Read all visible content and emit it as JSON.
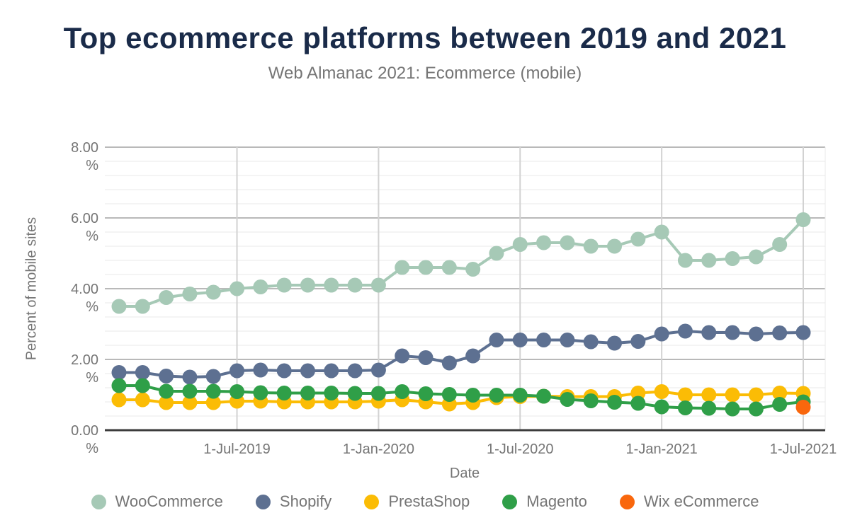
{
  "header": {
    "title": "Top ecommerce platforms between 2019 and 2021",
    "subtitle": "Web Almanac 2021: Ecommerce (mobile)"
  },
  "chart_data": {
    "type": "line",
    "title": "Top ecommerce platforms between 2019 and 2021",
    "subtitle": "Web Almanac 2021: Ecommerce (mobile)",
    "xlabel": "Date",
    "ylabel": "Percent of mobile sites",
    "ylim": [
      0,
      8
    ],
    "y_minor_step": 0.4,
    "y_major_step": 2,
    "grid": true,
    "legend_position": "bottom",
    "y_tick_labels": [
      {
        "value": 8,
        "line1": "8.00",
        "line2": "%"
      },
      {
        "value": 6,
        "line1": "6.00",
        "line2": "%"
      },
      {
        "value": 4,
        "line1": "4.00",
        "line2": "%"
      },
      {
        "value": 2,
        "line1": "2.00",
        "line2": "%"
      },
      {
        "value": 0,
        "line1": "0.00",
        "line2": "%"
      }
    ],
    "x": [
      "1-Feb-2019",
      "1-Mar-2019",
      "1-Apr-2019",
      "1-May-2019",
      "1-Jun-2019",
      "1-Jul-2019",
      "1-Aug-2019",
      "1-Sep-2019",
      "1-Oct-2019",
      "1-Nov-2019",
      "1-Dec-2019",
      "1-Jan-2020",
      "1-Feb-2020",
      "1-Mar-2020",
      "1-Apr-2020",
      "1-May-2020",
      "1-Jun-2020",
      "1-Jul-2020",
      "1-Aug-2020",
      "1-Sep-2020",
      "1-Oct-2020",
      "1-Nov-2020",
      "1-Dec-2020",
      "1-Jan-2021",
      "1-Feb-2021",
      "1-Mar-2021",
      "1-Apr-2021",
      "1-May-2021",
      "1-Jun-2021",
      "1-Jul-2021"
    ],
    "x_tick_indices": [
      5,
      11,
      17,
      23,
      29
    ],
    "x_tick_labels": [
      "1-Jul-2019",
      "1-Jan-2020",
      "1-Jul-2020",
      "1-Jan-2021",
      "1-Jul-2021"
    ],
    "series": [
      {
        "name": "WooCommerce",
        "color": "#a6c9b6",
        "values": [
          3.5,
          3.5,
          3.75,
          3.85,
          3.9,
          4.0,
          4.05,
          4.1,
          4.1,
          4.1,
          4.1,
          4.1,
          4.6,
          4.6,
          4.6,
          4.55,
          5.0,
          5.25,
          5.3,
          5.3,
          5.2,
          5.2,
          5.4,
          5.6,
          4.8,
          4.8,
          4.85,
          4.9,
          5.25,
          5.95
        ]
      },
      {
        "name": "Shopify",
        "color": "#5d7091",
        "values": [
          1.63,
          1.63,
          1.53,
          1.5,
          1.52,
          1.68,
          1.7,
          1.68,
          1.68,
          1.68,
          1.68,
          1.7,
          2.1,
          2.05,
          1.9,
          2.1,
          2.55,
          2.55,
          2.55,
          2.55,
          2.5,
          2.46,
          2.51,
          2.72,
          2.8,
          2.76,
          2.76,
          2.72,
          2.75,
          2.76
        ]
      },
      {
        "name": "PrestaShop",
        "color": "#fbbc05",
        "values": [
          0.86,
          0.86,
          0.78,
          0.78,
          0.78,
          0.82,
          0.82,
          0.8,
          0.8,
          0.8,
          0.8,
          0.82,
          0.86,
          0.8,
          0.74,
          0.78,
          0.92,
          0.95,
          0.96,
          0.95,
          0.95,
          0.95,
          1.05,
          1.09,
          1.0,
          1.0,
          1.0,
          1.0,
          1.05,
          1.04
        ]
      },
      {
        "name": "Magento",
        "color": "#2f9f48",
        "values": [
          1.26,
          1.26,
          1.1,
          1.1,
          1.1,
          1.09,
          1.06,
          1.05,
          1.05,
          1.05,
          1.04,
          1.04,
          1.09,
          1.03,
          1.01,
          0.99,
          0.99,
          0.99,
          0.96,
          0.87,
          0.83,
          0.79,
          0.76,
          0.66,
          0.63,
          0.62,
          0.6,
          0.6,
          0.73,
          0.8
        ]
      },
      {
        "name": "Wix eCommerce",
        "color": "#f9670d",
        "values": [
          null,
          null,
          null,
          null,
          null,
          null,
          null,
          null,
          null,
          null,
          null,
          null,
          null,
          null,
          null,
          null,
          null,
          null,
          null,
          null,
          null,
          null,
          null,
          null,
          null,
          null,
          null,
          null,
          null,
          0.65
        ]
      }
    ],
    "colors": {
      "title": "#1a2b49",
      "axis_text": "#757575",
      "minor_grid": "#e8e8e8",
      "major_grid": "#b9b9b9",
      "vertical_grid": "#d2d2d2",
      "baseline": "#3c3c3c",
      "background": "#ffffff"
    }
  }
}
